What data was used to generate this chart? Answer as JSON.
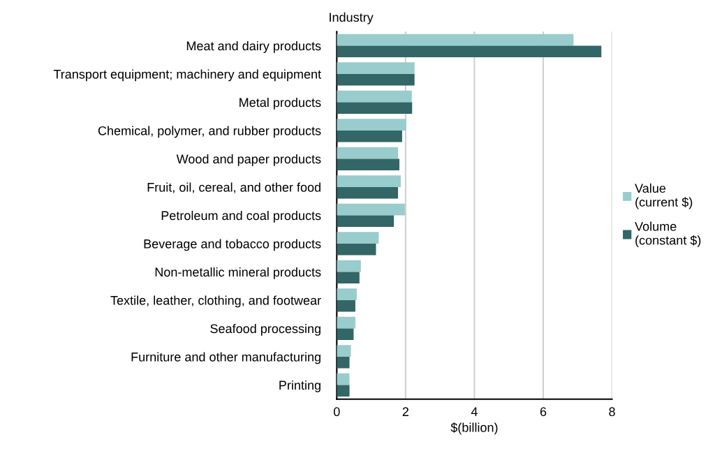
{
  "chart_data": {
    "type": "bar",
    "orientation": "horizontal",
    "ylabel": "Industry",
    "xlabel": "$(billion)",
    "categories": [
      "Meat and dairy products",
      "Transport equipment; machinery and equipment",
      "Metal products",
      "Chemical, polymer, and rubber products",
      "Wood and paper products",
      "Fruit, oil, cereal, and other food",
      "Petroleum and coal products",
      "Beverage and tobacco products",
      "Non-metallic mineral products",
      "Textile, leather, clothing, and footwear",
      "Seafood processing",
      "Furniture and other manufacturing",
      "Printing"
    ],
    "series": [
      {
        "name": "Value\n(current $)",
        "color": "#99cccc",
        "values": [
          6.88,
          2.26,
          2.18,
          2.02,
          1.78,
          1.86,
          1.98,
          1.22,
          0.7,
          0.58,
          0.54,
          0.41,
          0.37
        ]
      },
      {
        "name": "Volume\n(constant $)",
        "color": "#336666",
        "values": [
          7.69,
          2.26,
          2.19,
          1.9,
          1.82,
          1.78,
          1.66,
          1.14,
          0.66,
          0.54,
          0.49,
          0.37,
          0.37
        ]
      }
    ],
    "xlim": [
      0,
      8
    ],
    "xticks": [
      0,
      2,
      4,
      6,
      8
    ],
    "grid": "x",
    "legend": "right"
  }
}
